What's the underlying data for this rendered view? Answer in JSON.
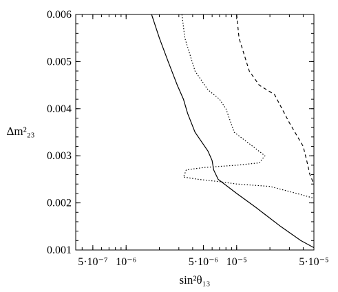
{
  "chart_data": {
    "type": "line",
    "title": "",
    "xlabel": "sin²θ₁₃",
    "ylabel": "Δm²₂₃",
    "xscale": "log",
    "xlim": [
      3.5e-07,
      5e-05
    ],
    "ylim": [
      0.001,
      0.006
    ],
    "grid": false,
    "legend": "none",
    "x_ticks": [
      {
        "value": 5e-07,
        "label": "5·10⁻⁷"
      },
      {
        "value": 1e-06,
        "label": "10⁻⁶"
      },
      {
        "value": 5e-06,
        "label": "5·10⁻⁶"
      },
      {
        "value": 1e-05,
        "label": "10⁻⁵"
      },
      {
        "value": 5e-05,
        "label": "5·10⁻⁵"
      }
    ],
    "y_ticks": [
      {
        "value": 0.001,
        "label": "0.001"
      },
      {
        "value": 0.002,
        "label": "0.002"
      },
      {
        "value": 0.003,
        "label": "0.003"
      },
      {
        "value": 0.004,
        "label": "0.004"
      },
      {
        "value": 0.005,
        "label": "0.005"
      },
      {
        "value": 0.006,
        "label": "0.006"
      }
    ],
    "series": [
      {
        "style": "solid",
        "color": "#000000",
        "points": [
          [
            1.7e-06,
            0.006
          ],
          [
            2e-06,
            0.0055
          ],
          [
            2.4e-06,
            0.005
          ],
          [
            2.9e-06,
            0.0045
          ],
          [
            3.3e-06,
            0.0042
          ],
          [
            3.6e-06,
            0.0039
          ],
          [
            4.2e-06,
            0.0035
          ],
          [
            5.5e-06,
            0.0031
          ],
          [
            6e-06,
            0.0029
          ],
          [
            6.2e-06,
            0.0027
          ],
          [
            6.8e-06,
            0.0025
          ],
          [
            1e-05,
            0.0022
          ],
          [
            1.5e-05,
            0.0019
          ],
          [
            2.5e-05,
            0.0015
          ],
          [
            3.8e-05,
            0.0012
          ],
          [
            5e-05,
            0.00105
          ]
        ]
      },
      {
        "style": "dotted",
        "color": "#000000",
        "points": [
          [
            3.2e-06,
            0.006
          ],
          [
            3.4e-06,
            0.0055
          ],
          [
            4.2e-06,
            0.0048
          ],
          [
            5.5e-06,
            0.0044
          ],
          [
            7e-06,
            0.0042
          ],
          [
            8e-06,
            0.004
          ],
          [
            9.5e-06,
            0.0035
          ],
          [
            1.4e-05,
            0.0032
          ],
          [
            1.8e-05,
            0.003
          ],
          [
            1.6e-05,
            0.00285
          ],
          [
            1e-05,
            0.0028
          ],
          [
            5e-06,
            0.00275
          ],
          [
            3.5e-06,
            0.0027
          ],
          [
            3.3e-06,
            0.00255
          ],
          [
            4.5e-06,
            0.0025
          ],
          [
            7e-06,
            0.00245
          ],
          [
            1e-05,
            0.0024
          ],
          [
            2e-05,
            0.00235
          ],
          [
            3.5e-05,
            0.0022
          ],
          [
            5e-05,
            0.0021
          ]
        ]
      },
      {
        "style": "dashed",
        "color": "#000000",
        "points": [
          [
            1e-05,
            0.006
          ],
          [
            1.05e-05,
            0.0055
          ],
          [
            1.3e-05,
            0.0048
          ],
          [
            1.6e-05,
            0.0045
          ],
          [
            2.2e-05,
            0.0043
          ],
          [
            3e-05,
            0.0037
          ],
          [
            4e-05,
            0.0032
          ],
          [
            4.3e-05,
            0.0029
          ],
          [
            4.6e-05,
            0.0026
          ],
          [
            5e-05,
            0.0024
          ]
        ]
      }
    ]
  }
}
